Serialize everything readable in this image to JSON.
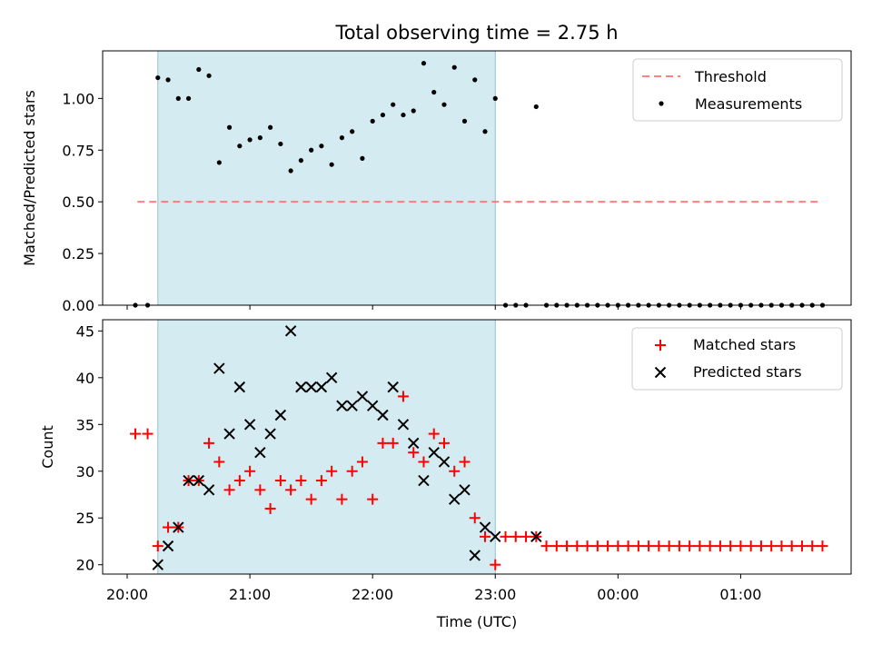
{
  "chart_data": [
    {
      "type": "scatter",
      "title": "Total observing time = 2.75 h",
      "xlabel": "",
      "ylabel": "Matched/Predicted stars",
      "ylim": [
        0,
        1.23
      ],
      "yticks": [
        "0.00",
        "0.25",
        "0.50",
        "0.75",
        "1.00"
      ],
      "ytick_values": [
        0,
        0.25,
        0.5,
        0.75,
        1.0
      ],
      "xlim": [
        "19:48",
        "01:54"
      ],
      "xticks": [
        "20:00",
        "21:00",
        "22:00",
        "23:00",
        "00:00",
        "01:00"
      ],
      "shaded_interval": [
        "20:15",
        "23:00"
      ],
      "shade_color": "#add8e6",
      "threshold": {
        "value": 0.5,
        "x_start": "20:05",
        "x_end": "01:40",
        "color": "#ff6b6b"
      },
      "legend_position": "upper right",
      "legend": [
        "Threshold",
        "Measurements"
      ],
      "series": [
        {
          "name": "Measurements",
          "color": "#000000",
          "x": [
            "20:04",
            "20:10",
            "20:15",
            "20:20",
            "20:25",
            "20:30",
            "20:35",
            "20:40",
            "20:45",
            "20:50",
            "20:55",
            "21:00",
            "21:05",
            "21:10",
            "21:15",
            "21:20",
            "21:25",
            "21:30",
            "21:35",
            "21:40",
            "21:45",
            "21:50",
            "21:55",
            "22:00",
            "22:05",
            "22:10",
            "22:15",
            "22:20",
            "22:25",
            "22:30",
            "22:35",
            "22:40",
            "22:45",
            "22:50",
            "22:55",
            "23:00",
            "23:05",
            "23:10",
            "23:15",
            "23:20",
            "23:25",
            "23:30",
            "23:35",
            "23:40",
            "23:45",
            "23:50",
            "23:55",
            "00:00",
            "00:05",
            "00:10",
            "00:15",
            "00:20",
            "00:25",
            "00:30",
            "00:35",
            "00:40",
            "00:45",
            "00:50",
            "00:55",
            "01:00",
            "01:05",
            "01:10",
            "01:15",
            "01:20",
            "01:25",
            "01:30",
            "01:35",
            "01:40"
          ],
          "y": [
            0,
            0,
            1.1,
            1.09,
            1.0,
            1.0,
            1.14,
            1.11,
            0.69,
            0.86,
            0.77,
            0.8,
            0.81,
            0.86,
            0.78,
            0.65,
            0.7,
            0.75,
            0.77,
            0.68,
            0.81,
            0.84,
            0.71,
            0.89,
            0.92,
            0.97,
            0.92,
            0.94,
            1.17,
            1.03,
            0.97,
            1.15,
            0.89,
            1.09,
            0.84,
            1.0,
            0,
            0,
            0,
            0.96,
            0,
            0,
            0,
            0,
            0,
            0,
            0,
            0,
            0,
            0,
            0,
            0,
            0,
            0,
            0,
            0,
            0,
            0,
            0,
            0,
            0,
            0,
            0,
            0,
            0,
            0,
            0,
            0
          ]
        }
      ]
    },
    {
      "type": "scatter",
      "title": "",
      "xlabel": "Time (UTC)",
      "ylabel": "Count",
      "ylim": [
        19,
        46.2
      ],
      "yticks": [
        "20",
        "25",
        "30",
        "35",
        "40",
        "45"
      ],
      "ytick_values": [
        20,
        25,
        30,
        35,
        40,
        45
      ],
      "xlim": [
        "19:48",
        "01:54"
      ],
      "xticks": [
        "20:00",
        "21:00",
        "22:00",
        "23:00",
        "00:00",
        "01:00"
      ],
      "shaded_interval": [
        "20:15",
        "23:00"
      ],
      "shade_color": "#add8e6",
      "legend_position": "upper right",
      "legend": [
        "Matched stars",
        "Predicted stars"
      ],
      "series": [
        {
          "name": "Matched stars",
          "marker": "+",
          "color": "#ff0000",
          "x": [
            "20:04",
            "20:10",
            "20:15",
            "20:20",
            "20:25",
            "20:30",
            "20:35",
            "20:40",
            "20:45",
            "20:50",
            "20:55",
            "21:00",
            "21:05",
            "21:10",
            "21:15",
            "21:20",
            "21:25",
            "21:30",
            "21:35",
            "21:40",
            "21:45",
            "21:50",
            "21:55",
            "22:00",
            "22:05",
            "22:10",
            "22:15",
            "22:20",
            "22:25",
            "22:30",
            "22:35",
            "22:40",
            "22:45",
            "22:50",
            "22:55",
            "23:00",
            "23:05",
            "23:10",
            "23:15",
            "23:20",
            "23:25",
            "23:30",
            "23:35",
            "23:40",
            "23:45",
            "23:50",
            "23:55",
            "00:00",
            "00:05",
            "00:10",
            "00:15",
            "00:20",
            "00:25",
            "00:30",
            "00:35",
            "00:40",
            "00:45",
            "00:50",
            "00:55",
            "01:00",
            "01:05",
            "01:10",
            "01:15",
            "01:20",
            "01:25",
            "01:30",
            "01:35",
            "01:40"
          ],
          "y": [
            34,
            34,
            22,
            24,
            24,
            29,
            29,
            33,
            31,
            28,
            29,
            30,
            28,
            26,
            29,
            28,
            29,
            27,
            29,
            30,
            27,
            30,
            31,
            27,
            33,
            33,
            38,
            32,
            31,
            34,
            33,
            30,
            31,
            25,
            23,
            20,
            23,
            23,
            23,
            23,
            22,
            22,
            22,
            22,
            22,
            22,
            22,
            22,
            22,
            22,
            22,
            22,
            22,
            22,
            22,
            22,
            22,
            22,
            22,
            22,
            22,
            22,
            22,
            22,
            22,
            22,
            22,
            22
          ]
        },
        {
          "name": "Predicted stars",
          "marker": "x",
          "color": "#000000",
          "x": [
            "20:15",
            "20:20",
            "20:25",
            "20:30",
            "20:35",
            "20:40",
            "20:45",
            "20:50",
            "20:55",
            "21:00",
            "21:05",
            "21:10",
            "21:15",
            "21:20",
            "21:25",
            "21:30",
            "21:35",
            "21:40",
            "21:45",
            "21:50",
            "21:55",
            "22:00",
            "22:05",
            "22:10",
            "22:15",
            "22:20",
            "22:25",
            "22:30",
            "22:35",
            "22:40",
            "22:45",
            "22:50",
            "22:55",
            "23:00",
            "23:20"
          ],
          "y": [
            20,
            22,
            24,
            29,
            29,
            28,
            41,
            34,
            39,
            35,
            32,
            34,
            36,
            45,
            39,
            39,
            39,
            40,
            37,
            37,
            38,
            37,
            36,
            39,
            35,
            33,
            29,
            32,
            31,
            27,
            28,
            21,
            24,
            23,
            23
          ]
        }
      ]
    }
  ]
}
